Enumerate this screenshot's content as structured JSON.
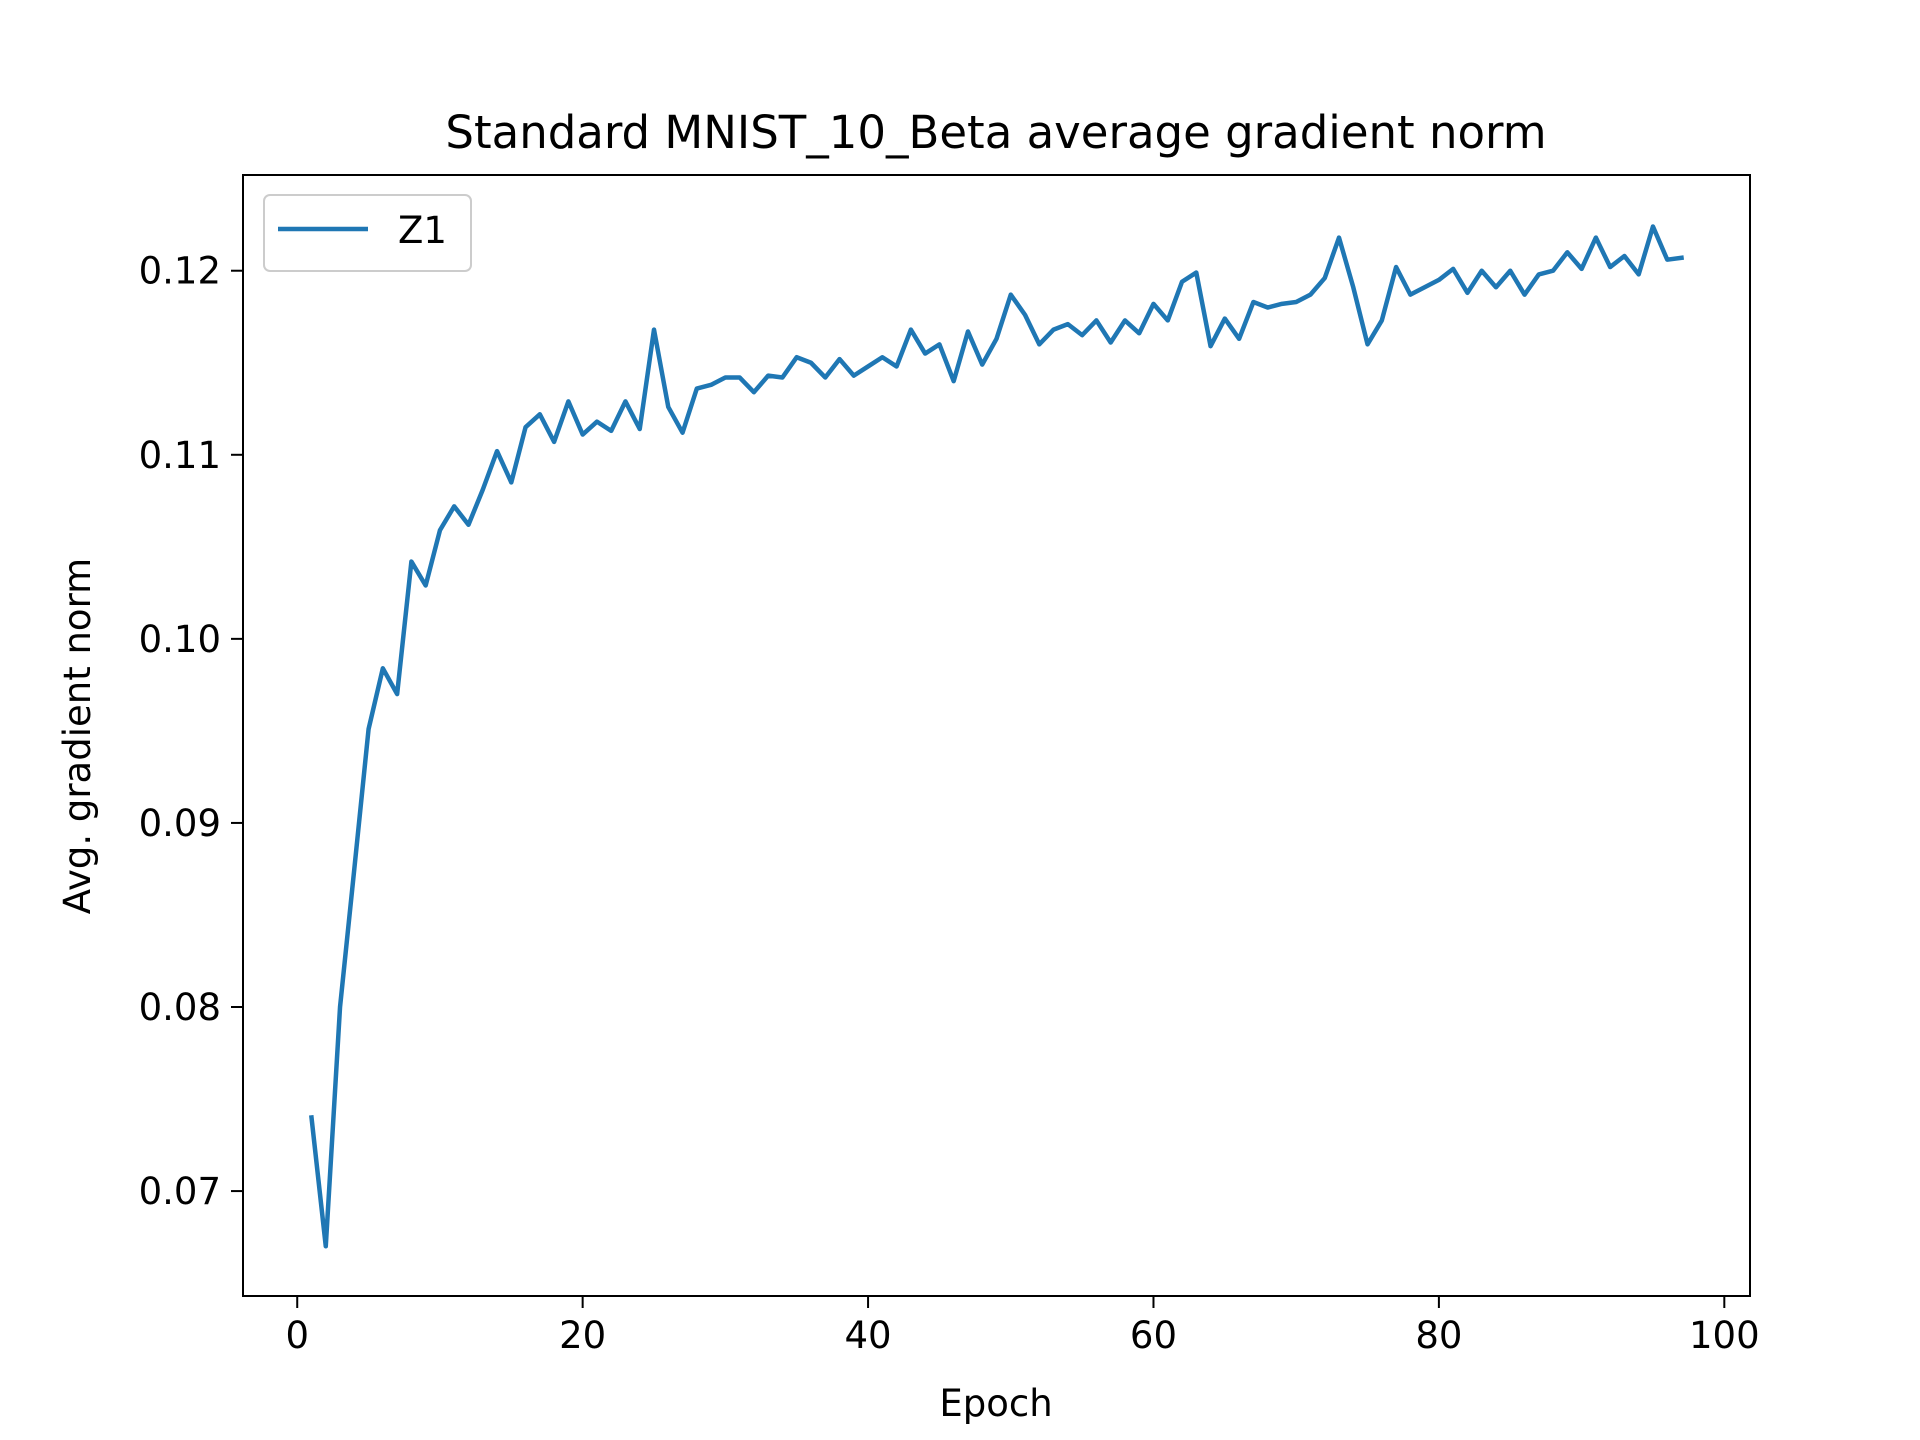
{
  "colors": {
    "series": "#1f77b4",
    "axis": "#000000",
    "background": "#ffffff",
    "legend_border": "#cccccc"
  },
  "chart_data": {
    "type": "line",
    "title": "Standard MNIST_10_Beta average gradient norm",
    "xlabel": "Epoch",
    "ylabel": "Avg. gradient norm",
    "xlim": [
      -3.8,
      101.8
    ],
    "ylim": [
      0.0643,
      0.1252
    ],
    "xticks": [
      0,
      20,
      40,
      60,
      80,
      100
    ],
    "xtick_labels": [
      "0",
      "20",
      "40",
      "60",
      "80",
      "100"
    ],
    "yticks": [
      0.07,
      0.08,
      0.09,
      0.1,
      0.11,
      0.12
    ],
    "ytick_labels": [
      "0.07",
      "0.08",
      "0.09",
      "0.10",
      "0.11",
      "0.12"
    ],
    "grid": false,
    "legend": {
      "position": "top-left",
      "entries": [
        "Z1"
      ]
    },
    "series": [
      {
        "name": "Z1",
        "x": [
          1,
          2,
          3,
          4,
          5,
          6,
          7,
          8,
          9,
          10,
          11,
          12,
          13,
          14,
          15,
          16,
          17,
          18,
          19,
          20,
          21,
          22,
          23,
          24,
          25,
          26,
          27,
          28,
          29,
          30,
          31,
          32,
          33,
          34,
          35,
          36,
          37,
          38,
          39,
          40,
          41,
          42,
          43,
          44,
          45,
          46,
          47,
          48,
          49,
          50,
          51,
          52,
          53,
          54,
          55,
          56,
          57,
          58,
          59,
          60,
          61,
          62,
          63,
          64,
          65,
          66,
          67,
          68,
          69,
          70,
          71,
          72,
          73,
          74,
          75,
          76,
          77,
          78,
          79,
          80,
          81,
          82,
          83,
          84,
          85,
          86,
          87,
          88,
          89,
          90,
          91,
          92,
          93,
          94,
          95,
          96,
          97
        ],
        "values": [
          0.074,
          0.067,
          0.08,
          0.0875,
          0.0951,
          0.0984,
          0.097,
          0.1042,
          0.1029,
          0.1059,
          0.1072,
          0.1062,
          0.1081,
          0.1102,
          0.1085,
          0.1115,
          0.1122,
          0.1107,
          0.1129,
          0.1111,
          0.1118,
          0.1113,
          0.1129,
          0.1114,
          0.1168,
          0.1126,
          0.1112,
          0.1136,
          0.1138,
          0.1142,
          0.1142,
          0.1134,
          0.1143,
          0.1142,
          0.1153,
          0.115,
          0.1142,
          0.1152,
          0.1143,
          0.1148,
          0.1153,
          0.1148,
          0.1168,
          0.1155,
          0.116,
          0.114,
          0.1167,
          0.1149,
          0.1163,
          0.1187,
          0.1176,
          0.116,
          0.1168,
          0.1171,
          0.1165,
          0.1173,
          0.1161,
          0.1173,
          0.1166,
          0.1182,
          0.1173,
          0.1194,
          0.1199,
          0.1159,
          0.1174,
          0.1163,
          0.1183,
          0.118,
          0.1182,
          0.1183,
          0.1187,
          0.1196,
          0.1218,
          0.1191,
          0.116,
          0.1173,
          0.1202,
          0.1187,
          0.1191,
          0.1195,
          0.1201,
          0.1188,
          0.12,
          0.1191,
          0.12,
          0.1187,
          0.1198,
          0.12,
          0.121,
          0.1201,
          0.1218,
          0.1202,
          0.1208,
          0.1198,
          0.1224,
          0.1206,
          0.1207
        ]
      }
    ]
  }
}
